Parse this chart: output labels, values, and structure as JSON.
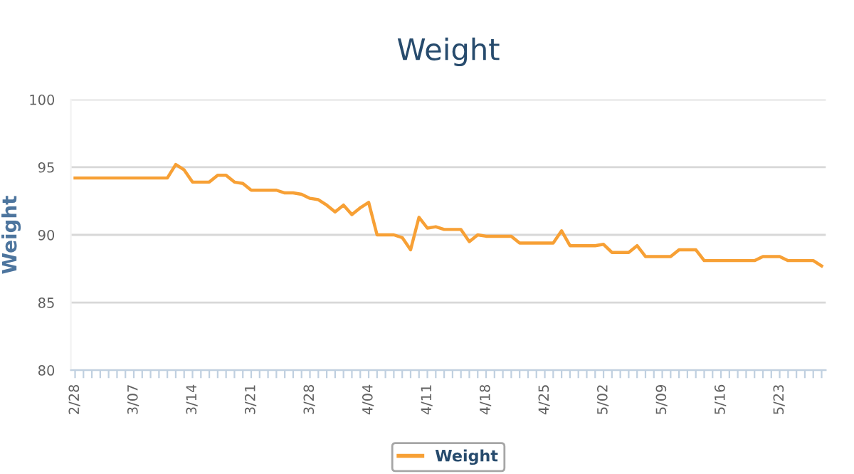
{
  "chart_data": {
    "type": "line",
    "title": "Weight",
    "ylabel": "Weight",
    "categories": [
      "2/28",
      null,
      null,
      null,
      null,
      null,
      null,
      "3/07",
      null,
      null,
      null,
      null,
      null,
      null,
      "3/14",
      null,
      null,
      null,
      null,
      null,
      null,
      "3/21",
      null,
      null,
      null,
      null,
      null,
      null,
      "3/28",
      null,
      null,
      null,
      null,
      null,
      null,
      "4/04",
      null,
      null,
      null,
      null,
      null,
      null,
      "4/11",
      null,
      null,
      null,
      null,
      null,
      null,
      "4/18",
      null,
      null,
      null,
      null,
      null,
      null,
      "4/25",
      null,
      null,
      null,
      null,
      null,
      null,
      "5/02",
      null,
      null,
      null,
      null,
      null,
      null,
      "5/09",
      null,
      null,
      null,
      null,
      null,
      null,
      "5/16",
      null,
      null,
      null,
      null,
      null,
      null,
      "5/23",
      null,
      null,
      null,
      null,
      null
    ],
    "series": [
      {
        "name": "Weight",
        "color": "#f7a035",
        "values": [
          94.2,
          94.2,
          94.2,
          94.2,
          94.2,
          94.2,
          94.2,
          94.2,
          94.2,
          94.2,
          94.2,
          94.2,
          95.2,
          94.8,
          93.9,
          93.9,
          93.9,
          94.4,
          94.4,
          93.9,
          93.8,
          93.3,
          93.3,
          93.3,
          93.3,
          93.1,
          93.1,
          93.0,
          92.7,
          92.6,
          92.2,
          91.7,
          92.2,
          91.5,
          92.0,
          92.4,
          90.0,
          90.0,
          90.0,
          89.8,
          88.9,
          91.3,
          90.5,
          90.6,
          90.4,
          90.4,
          90.4,
          89.5,
          90.0,
          89.9,
          89.9,
          89.9,
          89.9,
          89.4,
          89.4,
          89.4,
          89.4,
          89.4,
          90.3,
          89.2,
          89.2,
          89.2,
          89.2,
          89.3,
          88.7,
          88.7,
          88.7,
          89.2,
          88.4,
          88.4,
          88.4,
          88.4,
          88.9,
          88.9,
          88.9,
          88.1,
          88.1,
          88.1,
          88.1,
          88.1,
          88.1,
          88.1,
          88.4,
          88.4,
          88.4,
          88.1,
          88.1,
          88.1,
          88.1,
          87.7
        ]
      }
    ],
    "ylim": [
      80,
      100
    ],
    "yticks": [
      80,
      85,
      90,
      95,
      100
    ],
    "grid": "y",
    "legend": "bottom",
    "marker": "none",
    "line_style": "solid"
  }
}
